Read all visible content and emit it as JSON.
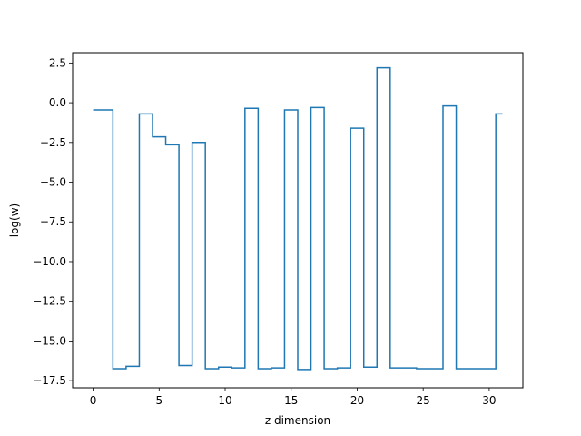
{
  "chart_data": {
    "type": "line",
    "drawstyle": "steps-mid",
    "xlabel": "z dimension",
    "ylabel": "log(w)",
    "xlim": [
      -1.55,
      32.55
    ],
    "ylim": [
      -17.95,
      3.15
    ],
    "xticks": [
      0,
      5,
      10,
      15,
      20,
      25,
      30
    ],
    "yticks": [
      2.5,
      0.0,
      -2.5,
      -5.0,
      -7.5,
      -10.0,
      -12.5,
      -15.0,
      -17.5
    ],
    "xtick_labels": [
      "0",
      "5",
      "10",
      "15",
      "20",
      "25",
      "30"
    ],
    "ytick_labels": [
      "2.5",
      "0.0",
      "−2.5",
      "−5.0",
      "−7.5",
      "−10.0",
      "−12.5",
      "−15.0",
      "−17.5"
    ],
    "grid": false,
    "line_color": "#1f77b4",
    "x": [
      0,
      1,
      2,
      3,
      4,
      5,
      6,
      7,
      8,
      9,
      10,
      11,
      12,
      13,
      14,
      15,
      16,
      17,
      18,
      19,
      20,
      21,
      22,
      23,
      24,
      25,
      26,
      27,
      28,
      29,
      30,
      31
    ],
    "y": [
      -0.45,
      -0.45,
      -16.75,
      -16.6,
      -0.7,
      -2.15,
      -2.65,
      -16.55,
      -2.5,
      -16.75,
      -16.65,
      -16.7,
      -0.35,
      -16.75,
      -16.7,
      -0.45,
      -16.8,
      -0.3,
      -16.75,
      -16.7,
      -1.6,
      -16.65,
      2.2,
      -16.7,
      -16.7,
      -16.75,
      -16.75,
      -0.2,
      -16.75,
      -16.75,
      -16.75,
      -0.7
    ]
  }
}
